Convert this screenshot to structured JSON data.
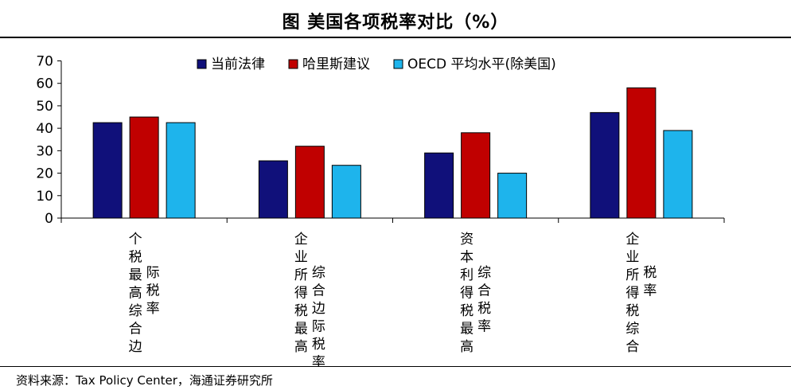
{
  "title": "图 美国各项税率对比（%）",
  "source": "资料来源：Tax Policy Center，海通证券研究所",
  "chart_data": {
    "type": "bar",
    "ylim": [
      0,
      70
    ],
    "yticks": [
      0,
      10,
      20,
      30,
      40,
      50,
      60,
      70
    ],
    "legend_position": "top",
    "categories": [
      {
        "columns": [
          "个税最高综合边",
          "际税率"
        ]
      },
      {
        "columns": [
          "企业所得税最高",
          "综合边际税率"
        ]
      },
      {
        "columns": [
          "资本利得税最高",
          "综合税率"
        ]
      },
      {
        "columns": [
          "企业所得税综合",
          "税率"
        ]
      }
    ],
    "series": [
      {
        "name": "当前法律",
        "color": "#10107a",
        "values": [
          42.5,
          25.5,
          29,
          47
        ]
      },
      {
        "name": "哈里斯建议",
        "color": "#c00000",
        "values": [
          45,
          32,
          38,
          58
        ]
      },
      {
        "name": "OECD 平均水平(除美国)",
        "color": "#1eb4ec",
        "values": [
          42.5,
          23.5,
          20,
          39
        ]
      }
    ]
  }
}
